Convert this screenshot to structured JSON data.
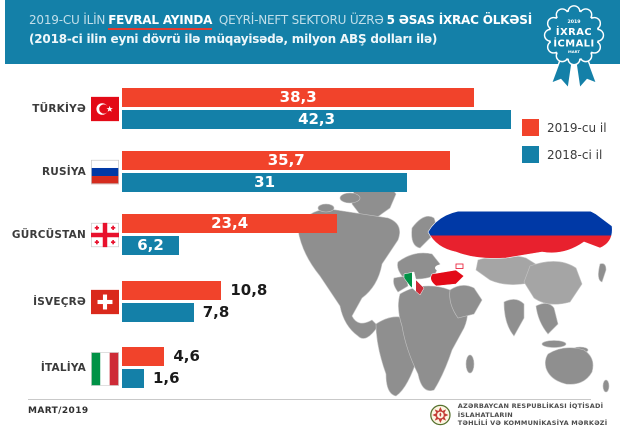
{
  "header": {
    "line1_prefix": "2019-CU İLİN",
    "line1_emphasis": "FEVRAL AYINDA",
    "line1_middle": " QEYRİ-NEFT SEKTORU ÜZRƏ",
    "line1_bold": "5 ƏSAS İXRAC ÖLKƏSİ",
    "line2": "(2018-ci ilin eyni dövrü ilə müqayisədə, milyon ABŞ dolları ilə)",
    "bg_color": "#1480a8",
    "underline_color": "#e03b2f"
  },
  "badge": {
    "year": "2019",
    "line1": "İXRAC",
    "line2": "İCMALI",
    "month": "MART",
    "color": "#1480a8"
  },
  "legend": [
    {
      "label": "2019-cu il",
      "color": "#f1432b"
    },
    {
      "label": "2018-ci il",
      "color": "#1480a8"
    }
  ],
  "chart_data": {
    "type": "bar",
    "orientation": "horizontal",
    "title": "2019-cu ilin fevral ayında qeyri-neft sektoru üzrə 5 əsas ixrac ölkəsi",
    "unit": "milyon ABŞ dolları",
    "categories": [
      "TÜRKİYƏ",
      "RUSİYA",
      "GÜRCÜSTAN",
      "İSVEÇRƏ",
      "İTALİYA"
    ],
    "flags": [
      "turkiye",
      "rusiya",
      "gurcustan",
      "isvecre",
      "italiya"
    ],
    "series": [
      {
        "name": "2019-cu il",
        "color": "#f1432b",
        "values": [
          38.3,
          35.7,
          23.4,
          10.8,
          4.6
        ],
        "display": [
          "38,3",
          "35,7",
          "23,4",
          "10,8",
          "4,6"
        ]
      },
      {
        "name": "2018-ci il",
        "color": "#1480a8",
        "values": [
          42.3,
          31,
          6.2,
          7.8,
          1.6
        ],
        "display": [
          "42,3",
          "31",
          "6,2",
          "7,8",
          "1,6"
        ]
      }
    ],
    "labels_inside_by_row": [
      true,
      true,
      true,
      false,
      false
    ],
    "xlim": [
      0,
      45
    ],
    "grid": false,
    "legend_position": "upper right"
  },
  "footer": {
    "date": "MART/2019",
    "org_line1": "AZƏRBAYCAN RESPUBLİKASI İQTİSADİ İSLAHATLARIN",
    "org_line2": "TƏHLİLİ VƏ KOMMUNİKASİYA MƏRKƏZİ"
  }
}
